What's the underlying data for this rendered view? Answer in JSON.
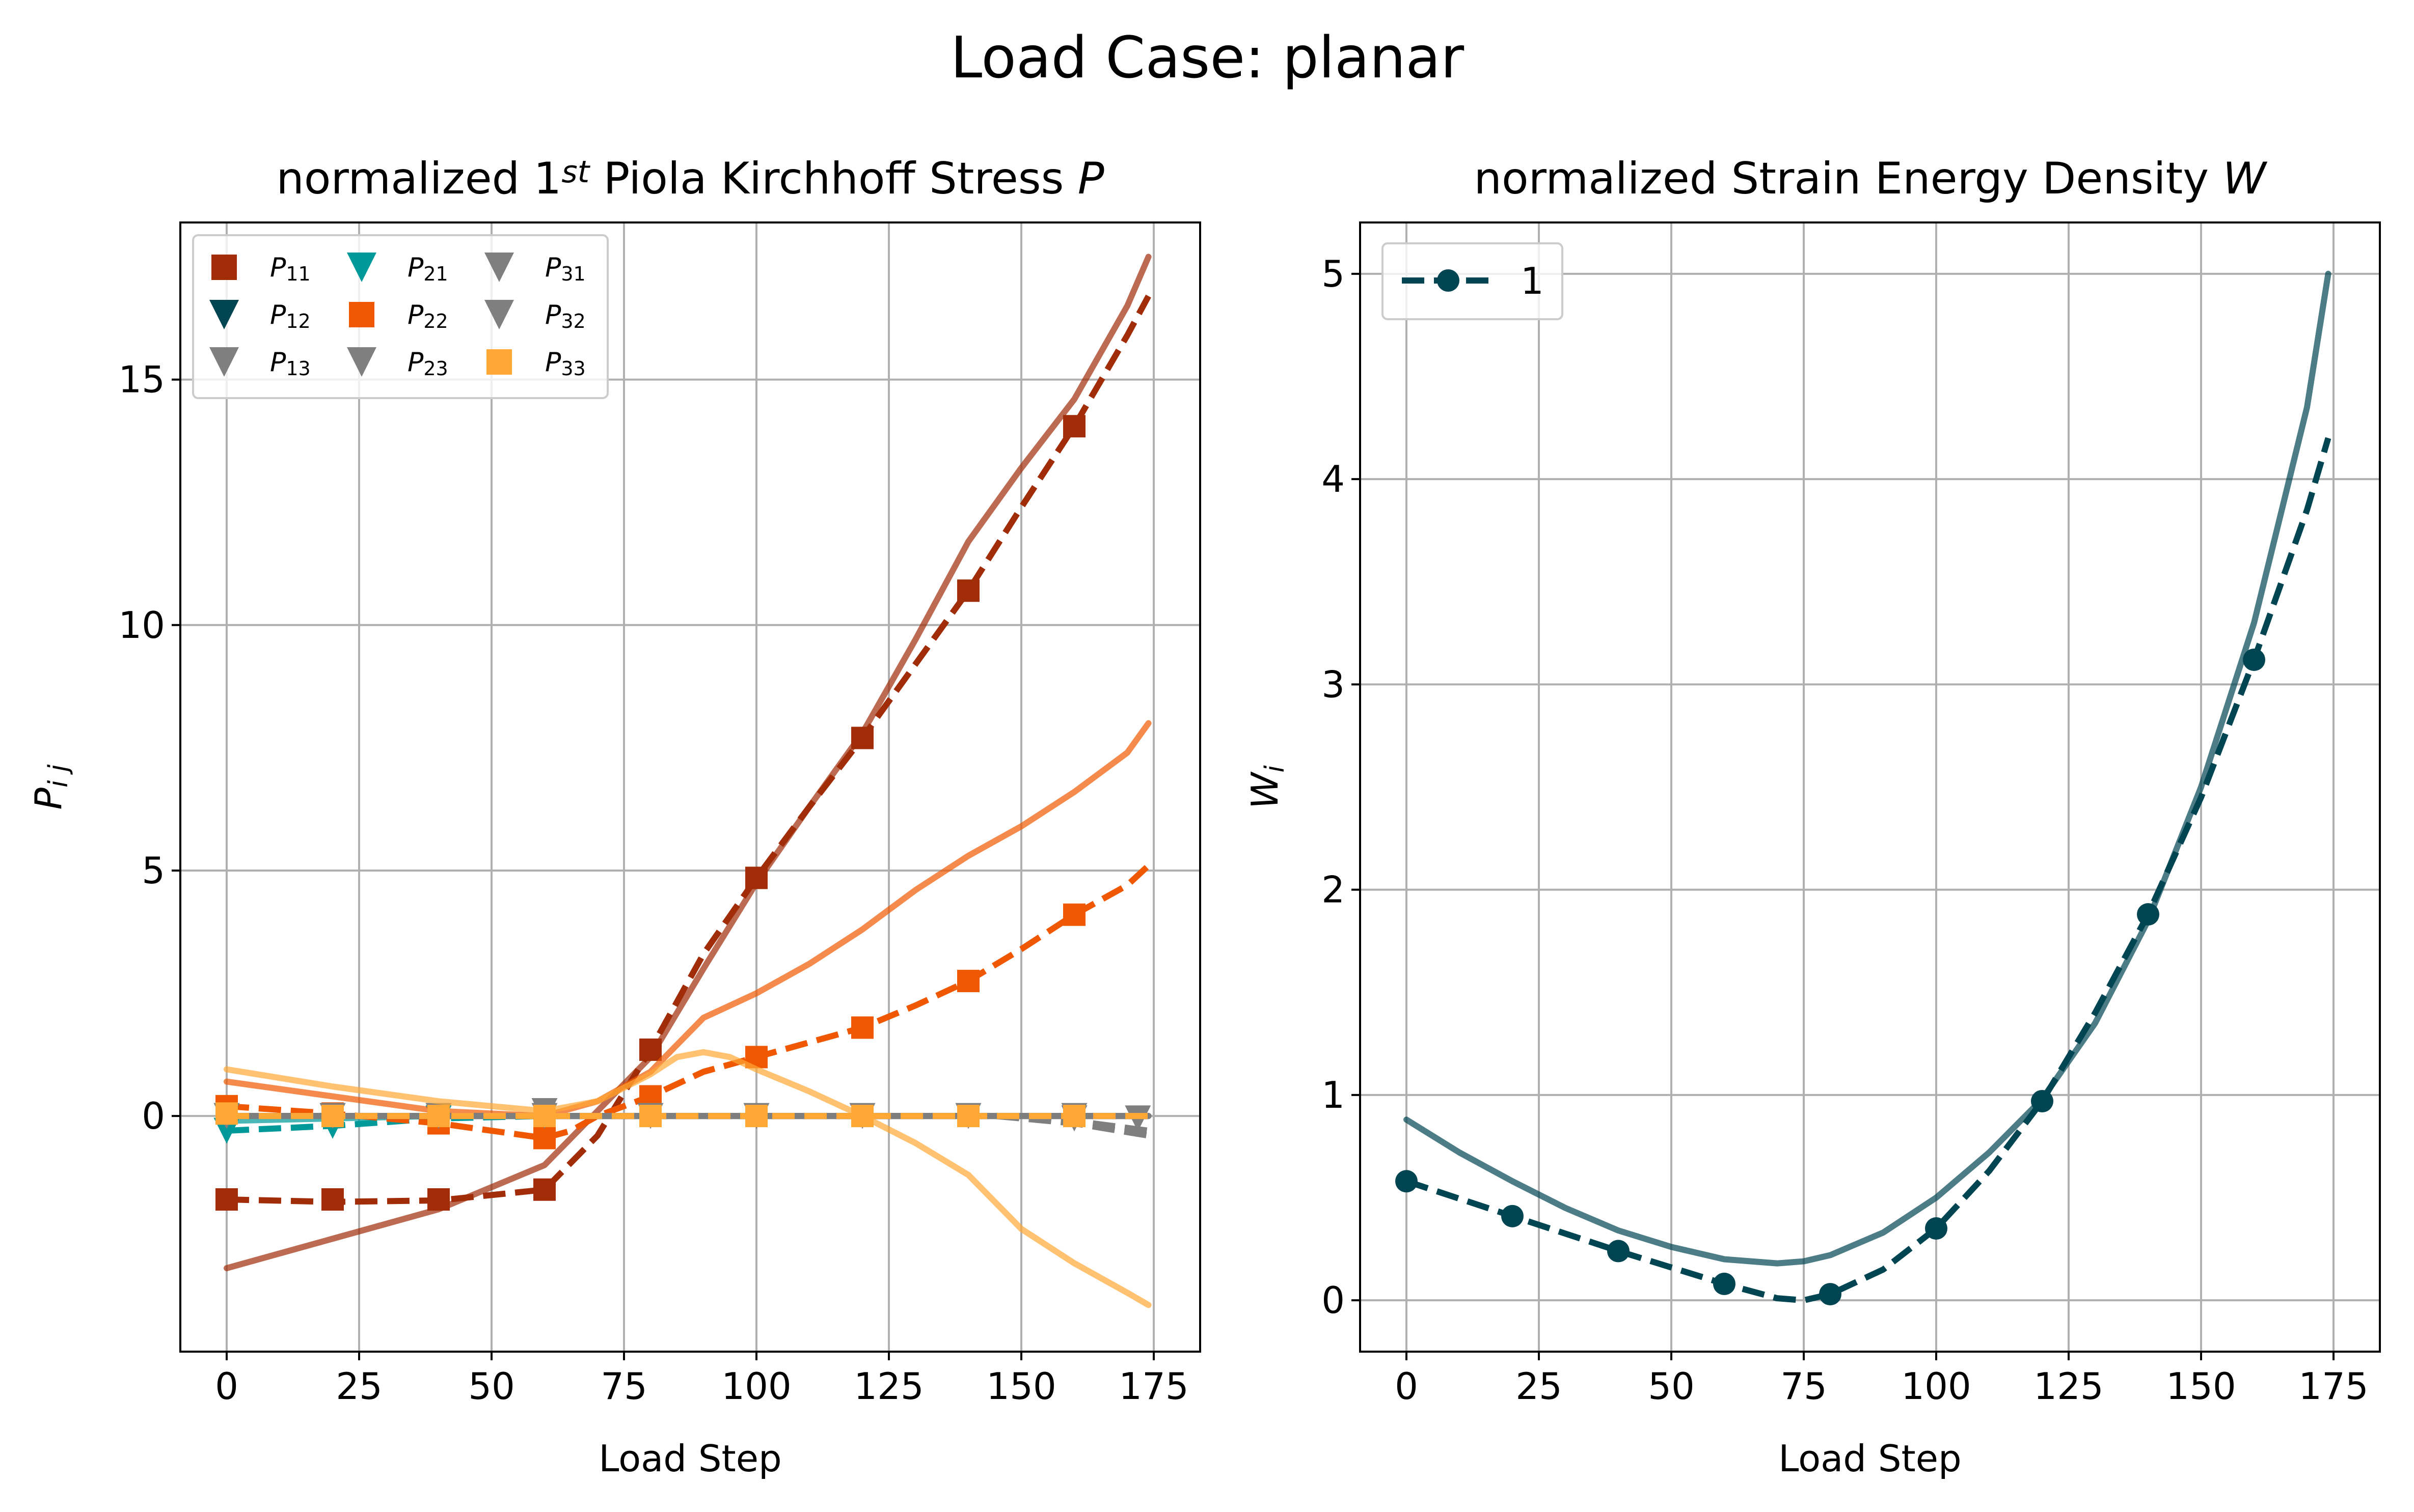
{
  "figure": {
    "title": "Load Case: planar"
  },
  "chart_data": [
    {
      "type": "line",
      "title": "normalized 1st Piola Kirchhoff Stress P",
      "title_parts": {
        "prefix": "normalized 1",
        "sup": "st",
        "middle": " Piola Kirchhoff Stress ",
        "symbol": "P"
      },
      "xlabel": "Load Step",
      "ylabel": "P",
      "ylabel_sub": "i j",
      "xlim": [
        -8.75,
        183.75
      ],
      "ylim": [
        -4.8,
        18.2
      ],
      "xticks": [
        0,
        25,
        50,
        75,
        100,
        125,
        150,
        175
      ],
      "yticks": [
        0,
        5,
        10,
        15
      ],
      "grid": true,
      "legend_position": "top-left",
      "legend_order": [
        "P11",
        "P12",
        "P13",
        "P21",
        "P22",
        "P23",
        "P31",
        "P32",
        "P33"
      ],
      "series": [
        {
          "name": "P11",
          "label_main": "P",
          "label_sub": "11",
          "color": "#a02c08",
          "marker": "square",
          "marker_x": [
            0,
            20,
            40,
            60,
            80,
            100,
            120,
            140,
            160
          ],
          "marker_y": [
            -1.7,
            -1.7,
            -1.7,
            -1.5,
            1.35,
            4.85,
            7.7,
            10.7,
            14.05
          ],
          "dashed_x": [
            0,
            20,
            40,
            60,
            70,
            80,
            90,
            100,
            110,
            120,
            130,
            140,
            150,
            160,
            170,
            174
          ],
          "dashed_y": [
            -1.7,
            -1.75,
            -1.72,
            -1.5,
            -0.4,
            1.35,
            3.3,
            4.85,
            6.3,
            7.7,
            9.2,
            10.7,
            12.4,
            14.05,
            15.9,
            16.7
          ],
          "solid_x": [
            0,
            20,
            40,
            60,
            70,
            80,
            90,
            100,
            110,
            120,
            130,
            140,
            150,
            160,
            170,
            174
          ],
          "solid_y": [
            -3.1,
            -2.5,
            -1.9,
            -1.0,
            0.1,
            1.2,
            3.0,
            4.75,
            6.3,
            7.8,
            9.7,
            11.7,
            13.2,
            14.6,
            16.5,
            17.5
          ]
        },
        {
          "name": "P12",
          "label_main": "P",
          "label_sub": "12",
          "color": "#004551",
          "marker": "triangle-down",
          "marker_x": [],
          "marker_y": [],
          "dashed_x": [
            0,
            174
          ],
          "dashed_y": [
            0,
            0
          ],
          "solid_x": [
            0,
            174
          ],
          "solid_y": [
            0,
            0
          ]
        },
        {
          "name": "P13",
          "label_main": "P",
          "label_sub": "13",
          "color": "#7f7f7f",
          "marker": "triangle-down",
          "marker_x": [],
          "marker_y": [],
          "dashed_x": [
            0,
            174
          ],
          "dashed_y": [
            0,
            0
          ],
          "solid_x": [
            0,
            174
          ],
          "solid_y": [
            0,
            0
          ]
        },
        {
          "name": "P21",
          "label_main": "P",
          "label_sub": "21",
          "color": "#009999",
          "marker": "triangle-down",
          "marker_x": [
            0,
            20,
            40
          ],
          "marker_y": [
            -0.3,
            -0.2,
            -0.05
          ],
          "dashed_x": [
            0,
            20,
            40,
            60,
            80
          ],
          "dashed_y": [
            -0.3,
            -0.2,
            -0.05,
            0,
            0
          ],
          "solid_x": [
            0,
            40,
            80
          ],
          "solid_y": [
            -0.1,
            0,
            0
          ]
        },
        {
          "name": "P22",
          "label_main": "P",
          "label_sub": "22",
          "color": "#ef5800",
          "marker": "square",
          "marker_x": [
            0,
            20,
            40,
            60,
            80,
            100,
            120,
            140,
            160
          ],
          "marker_y": [
            0.2,
            0.05,
            -0.15,
            -0.45,
            0.4,
            1.2,
            1.8,
            2.75,
            4.1
          ],
          "dashed_x": [
            0,
            20,
            40,
            60,
            65,
            70,
            80,
            90,
            100,
            110,
            120,
            130,
            140,
            150,
            160,
            170,
            174
          ],
          "dashed_y": [
            0.2,
            0.05,
            -0.15,
            -0.45,
            -0.3,
            0,
            0.4,
            0.9,
            1.2,
            1.5,
            1.8,
            2.25,
            2.75,
            3.4,
            4.1,
            4.7,
            5.1
          ],
          "solid_x": [
            0,
            20,
            40,
            60,
            70,
            80,
            90,
            100,
            110,
            120,
            130,
            140,
            150,
            160,
            170,
            174
          ],
          "solid_y": [
            0.7,
            0.4,
            0.1,
            0.0,
            0.3,
            0.9,
            2.0,
            2.5,
            3.1,
            3.8,
            4.6,
            5.3,
            5.9,
            6.6,
            7.4,
            8.0
          ]
        },
        {
          "name": "P23",
          "label_main": "P",
          "label_sub": "23",
          "color": "#7f7f7f",
          "marker": "triangle-down",
          "marker_x": [],
          "marker_y": [],
          "dashed_x": [
            0,
            174
          ],
          "dashed_y": [
            0,
            0
          ],
          "solid_x": [
            0,
            174
          ],
          "solid_y": [
            0,
            0
          ]
        },
        {
          "name": "P31",
          "label_main": "P",
          "label_sub": "31",
          "color": "#7f7f7f",
          "marker": "triangle-down",
          "marker_x": [
            0,
            20,
            40,
            60,
            80,
            100,
            120,
            140,
            160,
            172
          ],
          "marker_y": [
            0,
            0,
            0,
            0.1,
            0,
            0,
            0,
            0,
            -0.05,
            -0.05
          ],
          "dashed_x": [
            0,
            60,
            145,
            160,
            174
          ],
          "dashed_y": [
            0,
            0,
            0,
            -0.15,
            -0.4
          ],
          "solid_x": [
            0,
            174
          ],
          "solid_y": [
            0,
            0
          ]
        },
        {
          "name": "P32",
          "label_main": "P",
          "label_sub": "32",
          "color": "#7f7f7f",
          "marker": "triangle-down",
          "marker_x": [
            0,
            20,
            40,
            60,
            160
          ],
          "marker_y": [
            0,
            0,
            0,
            0,
            0
          ],
          "dashed_x": [
            0,
            145,
            160,
            174
          ],
          "dashed_y": [
            0,
            0,
            -0.1,
            -0.3
          ],
          "solid_x": [
            0,
            174
          ],
          "solid_y": [
            0,
            0
          ]
        },
        {
          "name": "P33",
          "label_main": "P",
          "label_sub": "33",
          "color": "#ffa835",
          "marker": "square",
          "marker_x": [
            0,
            20,
            40,
            60,
            80,
            100,
            120,
            140,
            160
          ],
          "marker_y": [
            0.05,
            0,
            0,
            0,
            0,
            0,
            0,
            0,
            0
          ],
          "dashed_x": [
            0,
            174
          ],
          "dashed_y": [
            0,
            0
          ],
          "solid_x": [
            0,
            20,
            40,
            60,
            70,
            80,
            85,
            90,
            95,
            100,
            110,
            120,
            130,
            140,
            150,
            160,
            170,
            174
          ],
          "solid_y": [
            0.95,
            0.6,
            0.3,
            0.1,
            0.3,
            0.85,
            1.2,
            1.3,
            1.2,
            0.95,
            0.5,
            0.0,
            -0.55,
            -1.2,
            -2.3,
            -3.0,
            -3.6,
            -3.85
          ]
        }
      ]
    },
    {
      "type": "line",
      "title": "normalized Strain Energy Density W",
      "title_parts": {
        "prefix": "normalized Strain Energy Density ",
        "symbol": "W"
      },
      "xlabel": "Load Step",
      "ylabel": "W",
      "ylabel_sub": "i",
      "xlim": [
        -8.75,
        183.75
      ],
      "ylim": [
        -0.25,
        5.25
      ],
      "xticks": [
        0,
        25,
        50,
        75,
        100,
        125,
        150,
        175
      ],
      "yticks": [
        0,
        1,
        2,
        3,
        4,
        5
      ],
      "grid": true,
      "legend_position": "top-left",
      "series": [
        {
          "name": "1",
          "color": "#004551",
          "marker": "circle",
          "marker_x": [
            0,
            20,
            40,
            60,
            80,
            100,
            120,
            140,
            160
          ],
          "marker_y": [
            0.58,
            0.41,
            0.24,
            0.08,
            0.03,
            0.35,
            0.97,
            1.88,
            3.12
          ],
          "dashed_x": [
            0,
            20,
            40,
            60,
            70,
            75,
            80,
            90,
            100,
            110,
            120,
            130,
            140,
            150,
            160,
            170,
            174
          ],
          "dashed_y": [
            0.58,
            0.41,
            0.24,
            0.08,
            0.01,
            0.0,
            0.03,
            0.15,
            0.35,
            0.63,
            0.97,
            1.4,
            1.88,
            2.45,
            3.12,
            3.85,
            4.2
          ],
          "solid_x": [
            0,
            10,
            20,
            30,
            40,
            50,
            60,
            70,
            75,
            80,
            90,
            100,
            110,
            120,
            130,
            140,
            150,
            160,
            170,
            174
          ],
          "solid_y": [
            0.88,
            0.72,
            0.58,
            0.45,
            0.34,
            0.26,
            0.2,
            0.18,
            0.19,
            0.22,
            0.33,
            0.5,
            0.72,
            0.98,
            1.35,
            1.85,
            2.5,
            3.3,
            4.35,
            5.0
          ]
        }
      ]
    }
  ]
}
